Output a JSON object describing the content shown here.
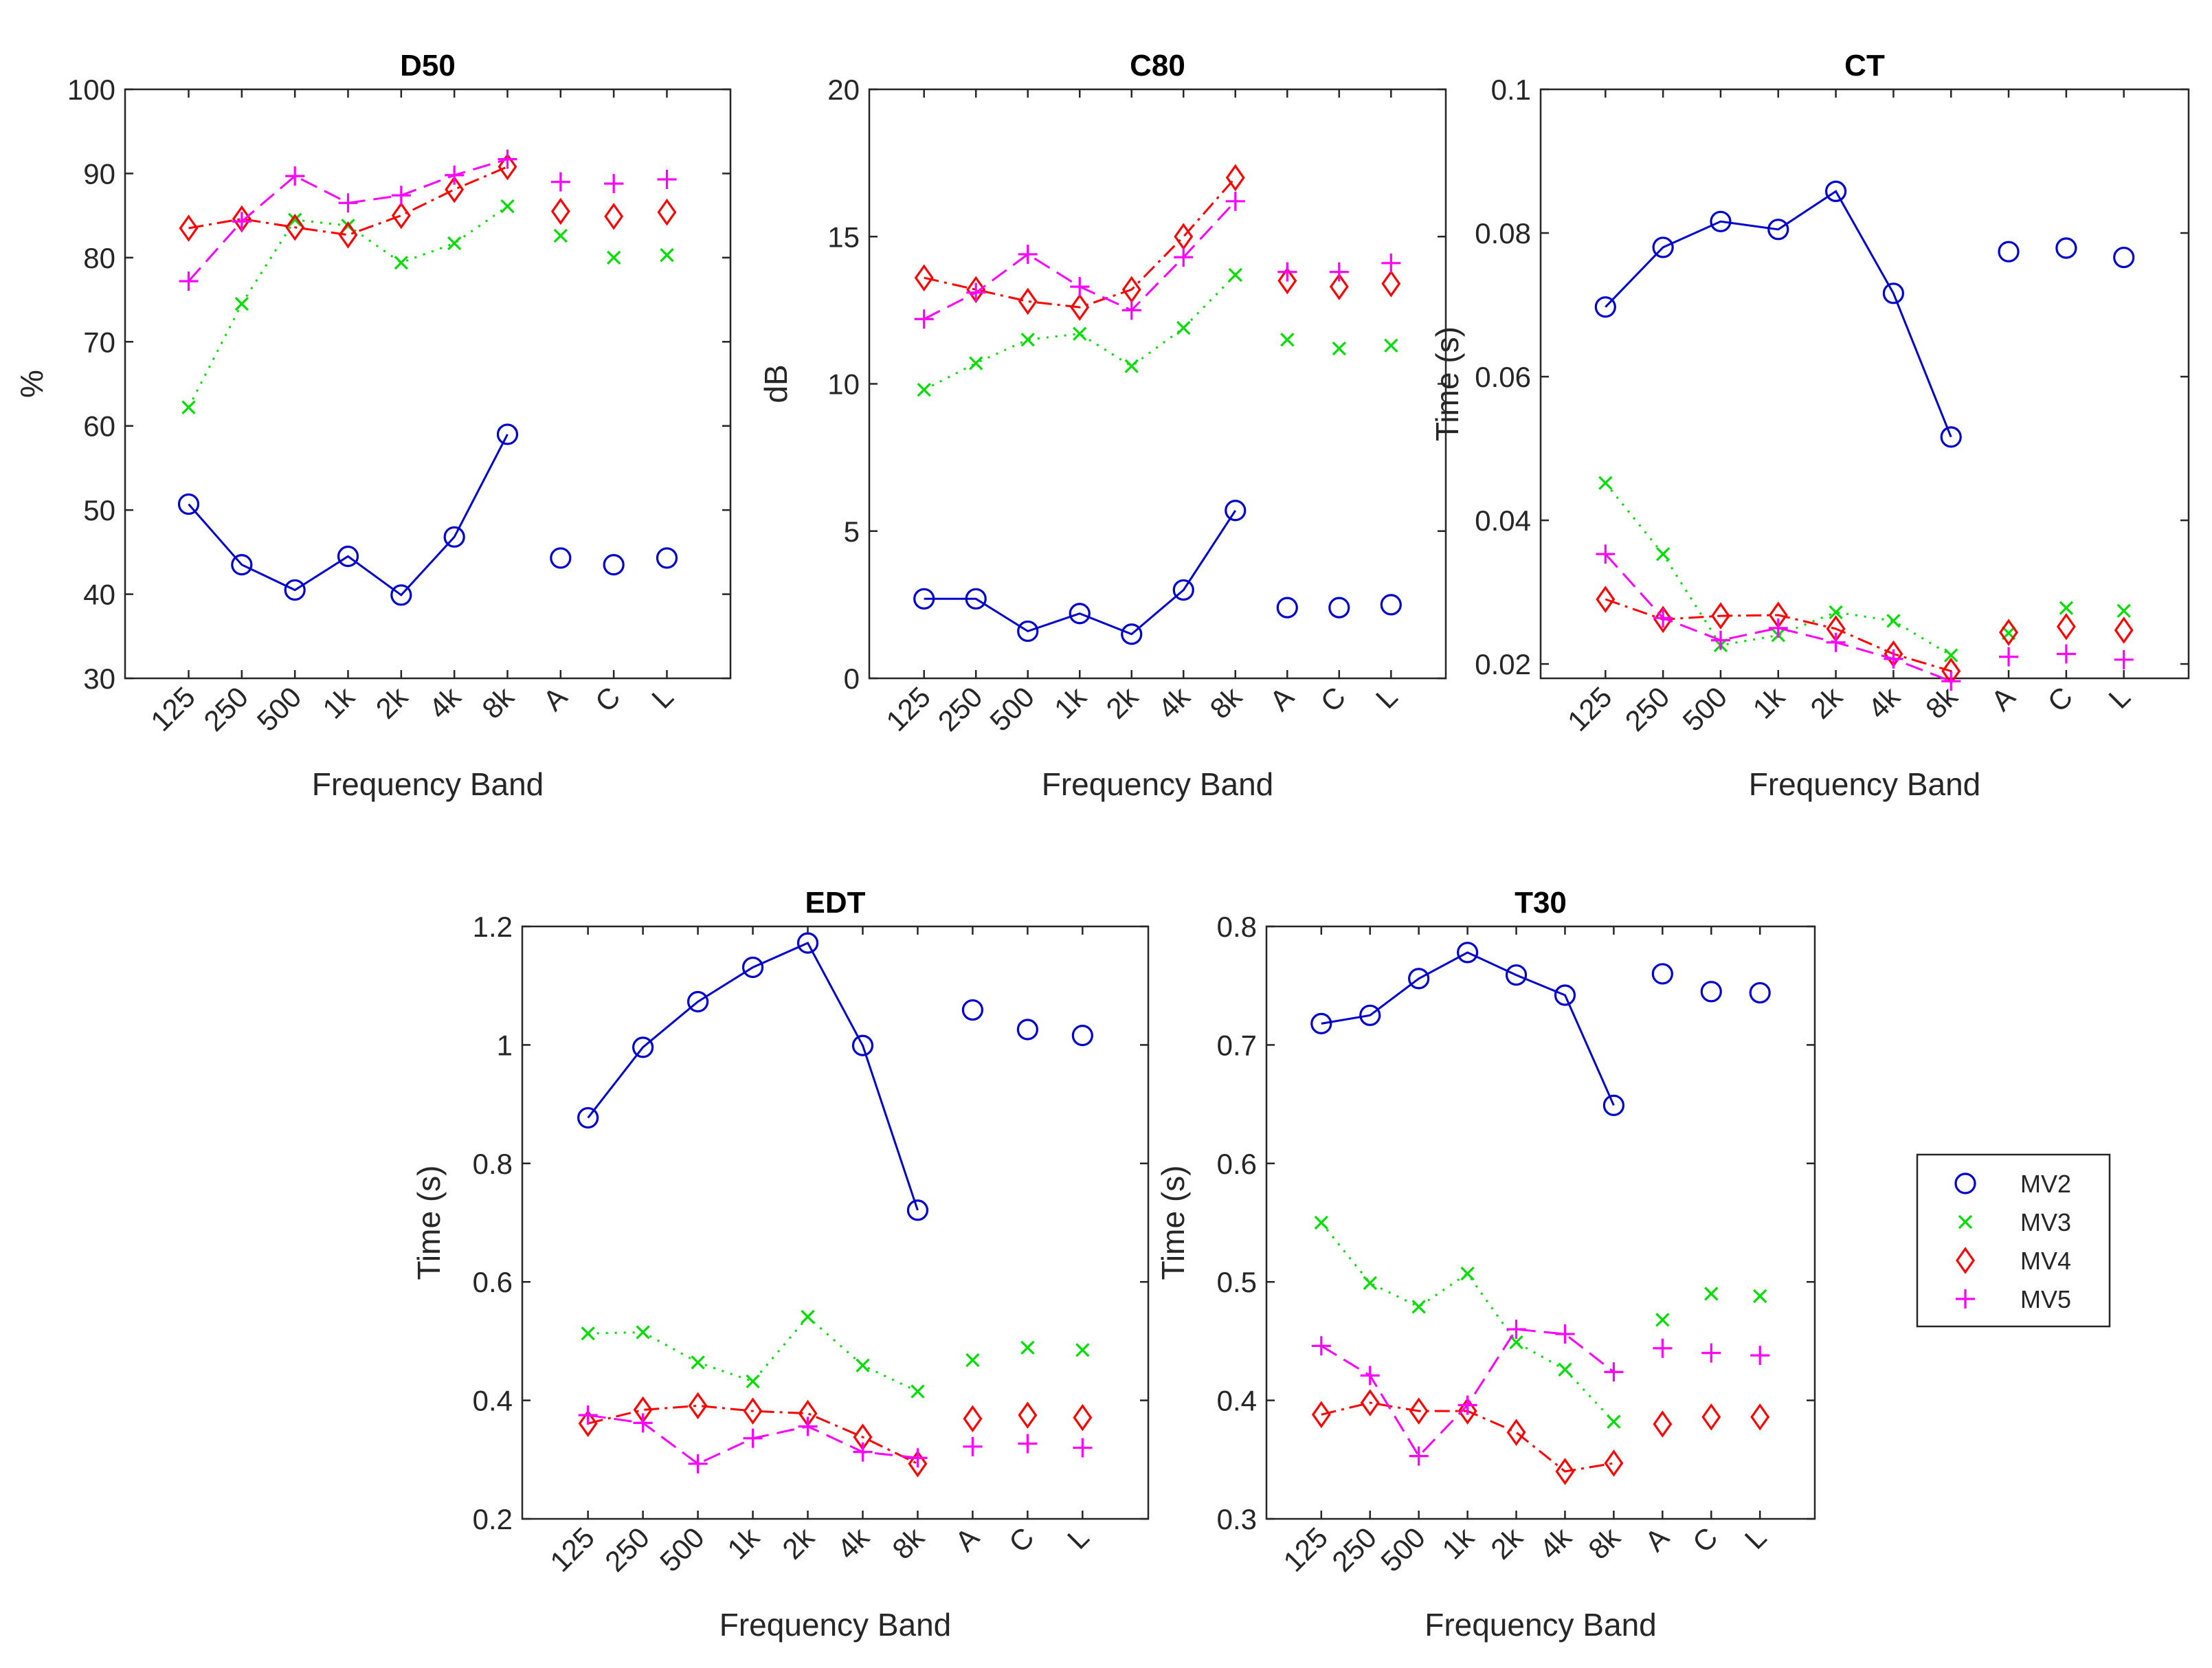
{
  "chart_data": [
    {
      "type": "line",
      "title": "D50",
      "xlabel": "Frequency Band",
      "ylabel": "%",
      "ylim": [
        30,
        100
      ],
      "yticks": [
        30,
        40,
        50,
        60,
        70,
        80,
        90,
        100
      ],
      "ytick_labels": [
        "30",
        "40",
        "50",
        "60",
        "70",
        "80",
        "90",
        "100"
      ],
      "categories": [
        "125",
        "250",
        "500",
        "1k",
        "2k",
        "4k",
        "8k",
        "A",
        "C",
        "L"
      ],
      "series": [
        {
          "name": "MV2",
          "values": [
            50.7,
            43.5,
            40.5,
            44.5,
            39.9,
            46.8,
            59.0,
            44.3,
            43.5,
            44.3
          ]
        },
        {
          "name": "MV3",
          "values": [
            62.2,
            74.5,
            84.5,
            83.8,
            79.4,
            81.7,
            86.1,
            82.6,
            80.0,
            80.3
          ]
        },
        {
          "name": "MV4",
          "values": [
            83.5,
            84.6,
            83.6,
            82.7,
            85.0,
            88.1,
            90.8,
            85.5,
            84.9,
            85.4
          ]
        },
        {
          "name": "MV5",
          "values": [
            77.2,
            84.3,
            89.7,
            86.5,
            87.4,
            89.8,
            91.7,
            89.0,
            88.8,
            89.3
          ]
        }
      ]
    },
    {
      "type": "line",
      "title": "C80",
      "xlabel": "Frequency Band",
      "ylabel": "dB",
      "ylim": [
        0,
        20
      ],
      "yticks": [
        0,
        5,
        10,
        15,
        20
      ],
      "ytick_labels": [
        "0",
        "5",
        "10",
        "15",
        "20"
      ],
      "categories": [
        "125",
        "250",
        "500",
        "1k",
        "2k",
        "4k",
        "8k",
        "A",
        "C",
        "L"
      ],
      "series": [
        {
          "name": "MV2",
          "values": [
            2.7,
            2.7,
            1.6,
            2.2,
            1.5,
            3.0,
            5.7,
            2.4,
            2.4,
            2.5
          ]
        },
        {
          "name": "MV3",
          "values": [
            9.8,
            10.7,
            11.5,
            11.7,
            10.6,
            11.9,
            13.7,
            11.5,
            11.2,
            11.3
          ]
        },
        {
          "name": "MV4",
          "values": [
            13.6,
            13.2,
            12.8,
            12.6,
            13.2,
            15.0,
            17.0,
            13.5,
            13.3,
            13.4
          ]
        },
        {
          "name": "MV5",
          "values": [
            12.2,
            13.1,
            14.4,
            13.3,
            12.5,
            14.3,
            16.2,
            13.8,
            13.8,
            14.1
          ]
        }
      ]
    },
    {
      "type": "line",
      "title": "CT",
      "xlabel": "Frequency Band",
      "ylabel": "Time (s)",
      "ylim": [
        0.018,
        0.1
      ],
      "yticks": [
        0.02,
        0.04,
        0.06,
        0.08,
        0.1
      ],
      "ytick_labels": [
        "0.02",
        "0.04",
        "0.06",
        "0.08",
        "0.1"
      ],
      "categories": [
        "125",
        "250",
        "500",
        "1k",
        "2k",
        "4k",
        "8k",
        "A",
        "C",
        "L"
      ],
      "series": [
        {
          "name": "MV2",
          "values": [
            0.0697,
            0.078,
            0.0816,
            0.0805,
            0.0858,
            0.0716,
            0.0516,
            0.0774,
            0.0779,
            0.0766
          ]
        },
        {
          "name": "MV3",
          "values": [
            0.0452,
            0.0353,
            0.0226,
            0.024,
            0.0272,
            0.026,
            0.0212,
            0.0243,
            0.0278,
            0.0274
          ]
        },
        {
          "name": "MV4",
          "values": [
            0.029,
            0.0262,
            0.0267,
            0.0268,
            0.0249,
            0.0214,
            0.019,
            0.0244,
            0.0252,
            0.0247
          ]
        },
        {
          "name": "MV5",
          "values": [
            0.0353,
            0.0264,
            0.0233,
            0.025,
            0.023,
            0.0207,
            0.0176,
            0.021,
            0.0214,
            0.0206
          ]
        }
      ]
    },
    {
      "type": "line",
      "title": "EDT",
      "xlabel": "Frequency Band",
      "ylabel": "Time (s)",
      "ylim": [
        0.2,
        1.2
      ],
      "yticks": [
        0.2,
        0.4,
        0.6,
        0.8,
        1.0,
        1.2
      ],
      "ytick_labels": [
        "0.2",
        "0.4",
        "0.6",
        "0.8",
        "1",
        "1.2"
      ],
      "categories": [
        "125",
        "250",
        "500",
        "1k",
        "2k",
        "4k",
        "8k",
        "A",
        "C",
        "L"
      ],
      "series": [
        {
          "name": "MV2",
          "values": [
            0.877,
            0.996,
            1.073,
            1.131,
            1.172,
            0.999,
            0.721,
            1.059,
            1.026,
            1.016
          ]
        },
        {
          "name": "MV3",
          "values": [
            0.513,
            0.515,
            0.464,
            0.432,
            0.541,
            0.459,
            0.415,
            0.468,
            0.489,
            0.485
          ]
        },
        {
          "name": "MV4",
          "values": [
            0.361,
            0.384,
            0.391,
            0.382,
            0.378,
            0.338,
            0.293,
            0.369,
            0.375,
            0.371
          ]
        },
        {
          "name": "MV5",
          "values": [
            0.375,
            0.362,
            0.293,
            0.336,
            0.356,
            0.313,
            0.303,
            0.322,
            0.327,
            0.32
          ]
        }
      ]
    },
    {
      "type": "line",
      "title": "T30",
      "xlabel": "Frequency Band",
      "ylabel": "Time (s)",
      "ylim": [
        0.3,
        0.8
      ],
      "yticks": [
        0.3,
        0.4,
        0.5,
        0.6,
        0.7,
        0.8
      ],
      "ytick_labels": [
        "0.3",
        "0.4",
        "0.5",
        "0.6",
        "0.7",
        "0.8"
      ],
      "categories": [
        "125",
        "250",
        "500",
        "1k",
        "2k",
        "4k",
        "8k",
        "A",
        "C",
        "L"
      ],
      "series": [
        {
          "name": "MV2",
          "values": [
            0.718,
            0.725,
            0.756,
            0.778,
            0.759,
            0.742,
            0.649,
            0.76,
            0.745,
            0.744
          ]
        },
        {
          "name": "MV3",
          "values": [
            0.55,
            0.499,
            0.479,
            0.507,
            0.449,
            0.426,
            0.382,
            0.468,
            0.49,
            0.488
          ]
        },
        {
          "name": "MV4",
          "values": [
            0.388,
            0.398,
            0.391,
            0.391,
            0.373,
            0.34,
            0.347,
            0.38,
            0.386,
            0.386
          ]
        },
        {
          "name": "MV5",
          "values": [
            0.446,
            0.421,
            0.353,
            0.396,
            0.46,
            0.456,
            0.424,
            0.444,
            0.44,
            0.438
          ]
        }
      ]
    }
  ],
  "legend": {
    "placement": "right",
    "entries": [
      {
        "name": "MV2",
        "color": "#0000cc",
        "marker": "circle",
        "linestyle": "solid"
      },
      {
        "name": "MV3",
        "color": "#00dd00",
        "marker": "x",
        "linestyle": "dotted"
      },
      {
        "name": "MV4",
        "color": "#ff0000",
        "marker": "diamond",
        "linestyle": "dashdot"
      },
      {
        "name": "MV5",
        "color": "#ff00ff",
        "marker": "plus",
        "linestyle": "dashed"
      }
    ]
  }
}
